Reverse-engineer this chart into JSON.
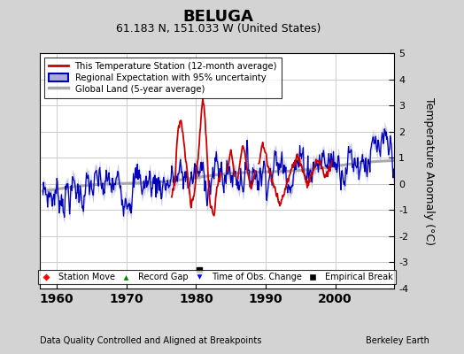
{
  "title": "BELUGA",
  "subtitle": "61.183 N, 151.033 W (United States)",
  "ylabel": "Temperature Anomaly (°C)",
  "xlabel_note": "Data Quality Controlled and Aligned at Breakpoints",
  "credit": "Berkeley Earth",
  "ylim": [
    -4,
    5
  ],
  "xlim": [
    1957.5,
    2008.5
  ],
  "xticks": [
    1960,
    1970,
    1980,
    1990,
    2000
  ],
  "yticks": [
    -4,
    -3,
    -2,
    -1,
    0,
    1,
    2,
    3,
    4,
    5
  ],
  "background_color": "#d3d3d3",
  "plot_bg_color": "#ffffff",
  "legend1_entries": [
    "This Temperature Station (12-month average)",
    "Regional Expectation with 95% uncertainty",
    "Global Land (5-year average)"
  ],
  "legend2_entries": [
    "Station Move",
    "Record Gap",
    "Time of Obs. Change",
    "Empirical Break"
  ],
  "empirical_break_x": 1980.5,
  "obs_change_marker_y": -3.3,
  "red_line_color": "#cc0000",
  "blue_line_color": "#0000bb",
  "blue_fill_color": "#aaaadd",
  "gray_line_color": "#aaaaaa",
  "title_fontsize": 13,
  "subtitle_fontsize": 9,
  "tick_fontsize": 10,
  "ylabel_fontsize": 9
}
